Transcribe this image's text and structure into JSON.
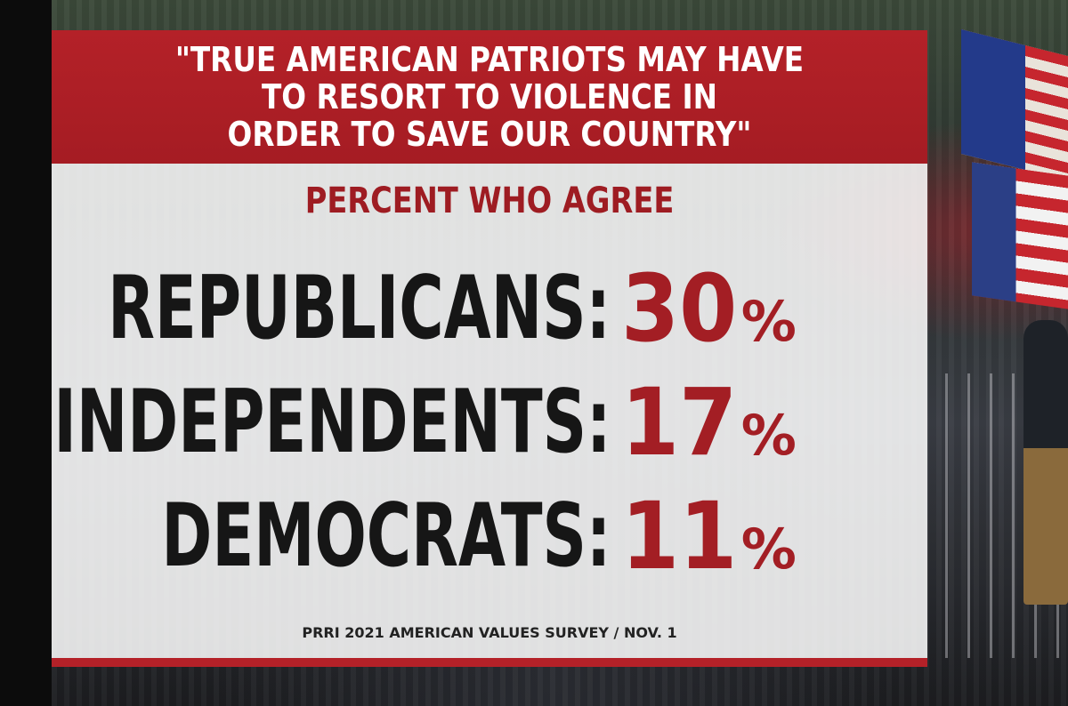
{
  "graphic": {
    "quote": "\"TRUE AMERICAN PATRIOTS MAY HAVE\nTO RESORT TO VIOLENCE IN\nORDER TO SAVE OUR COUNTRY\"",
    "subhead": "PERCENT WHO AGREE",
    "rows": [
      {
        "label": "REPUBLICANS:",
        "value": "30",
        "unit": "%"
      },
      {
        "label": "INDEPENDENTS:",
        "value": "17",
        "unit": "%"
      },
      {
        "label": "DEMOCRATS:",
        "value": "11",
        "unit": "%"
      }
    ],
    "source": "PRRI 2021 AMERICAN VALUES SURVEY / NOV. 1"
  },
  "colors": {
    "accent_red": "#b42128",
    "value_red": "#a31e24",
    "label_black": "#161616",
    "panel_white": "#ffffff"
  },
  "background": {
    "description_icon": "protest-crowd-photo"
  }
}
